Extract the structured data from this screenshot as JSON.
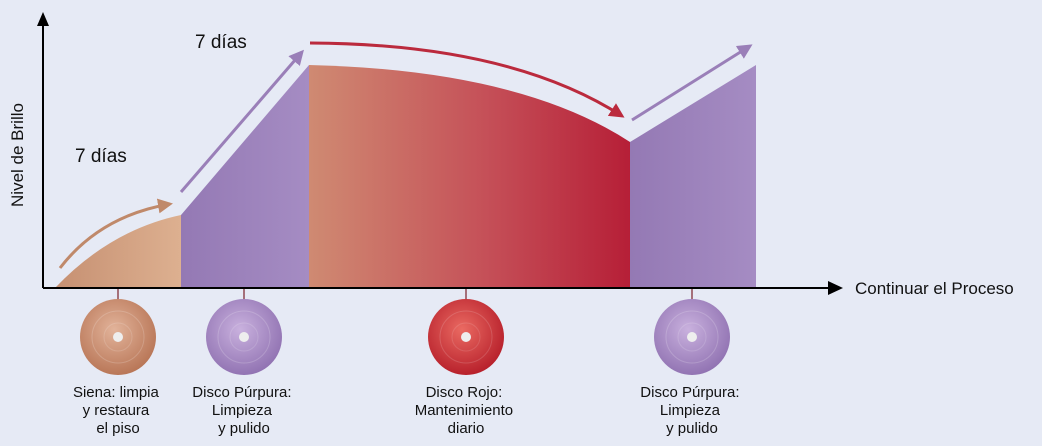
{
  "axes": {
    "y_label": "Nivel de Brillo",
    "x_label": "Continuar el Proceso"
  },
  "durations": {
    "first": "7 días",
    "second": "7 días"
  },
  "phases": [
    {
      "name": "siena",
      "color": "#d5a07f"
    },
    {
      "name": "purpura-1",
      "color": "#9a7fb8"
    },
    {
      "name": "rojo",
      "color_start": "#cf8a72",
      "color_end": "#b61f37"
    },
    {
      "name": "purpura-2",
      "color": "#9a7fb8"
    }
  ],
  "discs": [
    {
      "name": "siena",
      "color": "#c98a6a",
      "caption": [
        "Siena: limpia",
        "y restaura",
        "el piso"
      ]
    },
    {
      "name": "purpura-1",
      "color": "#a98bc6",
      "caption": [
        "Disco Púrpura:",
        "Limpieza",
        "y pulido"
      ]
    },
    {
      "name": "rojo",
      "color": "#d43a3c",
      "caption": [
        "Disco Rojo:",
        "Mantenimiento",
        "diario"
      ]
    },
    {
      "name": "purpura-2",
      "color": "#a98bc6",
      "caption": [
        "Disco Púrpura:",
        "Limpieza",
        "y pulido"
      ]
    }
  ],
  "colors": {
    "background": "#e6eaf5",
    "axis": "#000000",
    "arrow_tan": "#c0896a",
    "arrow_purple": "#9a7fb8",
    "arrow_red": "#bb2a3d",
    "connector": "#a5707a"
  }
}
